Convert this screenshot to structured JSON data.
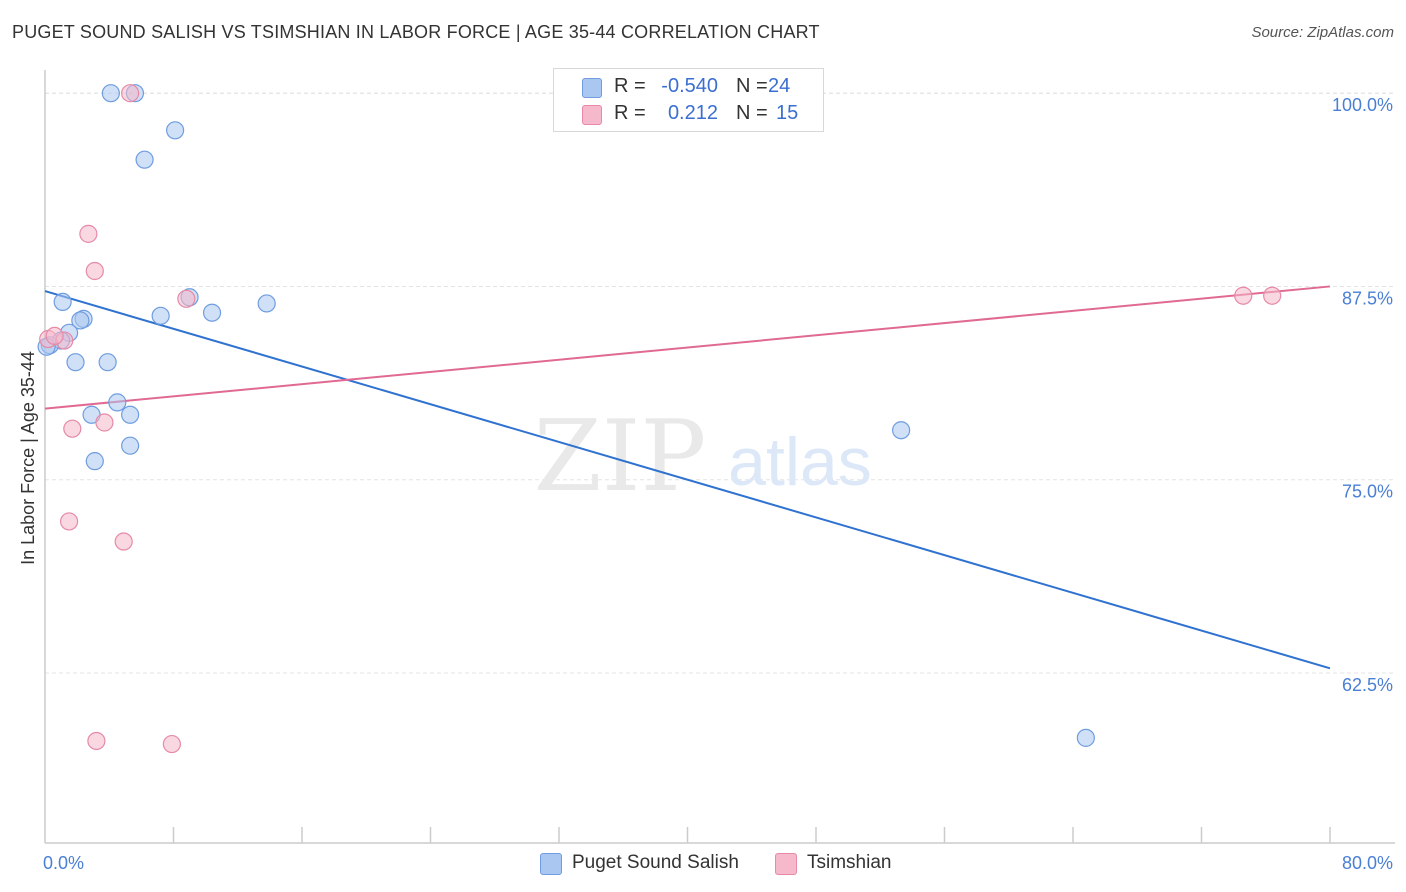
{
  "header": {
    "title": "PUGET SOUND SALISH VS TSIMSHIAN IN LABOR FORCE | AGE 35-44 CORRELATION CHART",
    "source": "Source: ZipAtlas.com"
  },
  "watermark": {
    "zip": "ZIP",
    "atlas": "atlas"
  },
  "legend": {
    "rows": [
      {
        "r_label": "R =",
        "r_value": "-0.540",
        "n_label": "N =",
        "n_value": "24",
        "color": "#a9c7f0",
        "border": "#6f9de0"
      },
      {
        "r_label": "R =",
        "r_value": "0.212",
        "n_label": "N =",
        "n_value": "15",
        "color": "#f6b8cb",
        "border": "#e68aa7"
      }
    ]
  },
  "colors": {
    "blue_fill": "#a9c7f0",
    "blue_stroke": "#6f9de0",
    "blue_line": "#2f72d0",
    "pink_fill": "#f6b8cb",
    "pink_stroke": "#e68aa7",
    "pink_line": "#e06a93",
    "grid": "#e3e3e3",
    "axis": "#cccccc",
    "tick_text": "#4a7fd4"
  },
  "chart_data": {
    "type": "scatter",
    "title": "PUGET SOUND SALISH VS TSIMSHIAN IN LABOR FORCE | AGE 35-44 CORRELATION CHART",
    "xlabel": "",
    "ylabel": "In Labor Force | Age 35-44",
    "xlim": [
      0,
      80
    ],
    "ylim": [
      51.5,
      101.5
    ],
    "x_tick_labels": [
      "0.0%",
      "80.0%"
    ],
    "y_ticks": [
      62.5,
      75.0,
      87.5,
      100.0
    ],
    "y_tick_labels": [
      "62.5%",
      "75.0%",
      "87.5%",
      "100.0%"
    ],
    "grid": true,
    "legend_position": "top-center",
    "series": [
      {
        "name": "Puget Sound Salish",
        "color": "#a9c7f0",
        "points": [
          [
            4.1,
            100.0
          ],
          [
            5.6,
            100.0
          ],
          [
            8.1,
            97.6
          ],
          [
            6.2,
            95.7
          ],
          [
            1.1,
            86.5
          ],
          [
            2.4,
            85.4
          ],
          [
            2.2,
            85.3
          ],
          [
            7.2,
            85.6
          ],
          [
            9.0,
            86.8
          ],
          [
            10.4,
            85.8
          ],
          [
            13.8,
            86.4
          ],
          [
            1.5,
            84.5
          ],
          [
            1.0,
            84.0
          ],
          [
            0.3,
            83.7
          ],
          [
            0.1,
            83.6
          ],
          [
            1.9,
            82.6
          ],
          [
            3.9,
            82.6
          ],
          [
            4.5,
            80.0
          ],
          [
            2.9,
            79.2
          ],
          [
            5.3,
            79.2
          ],
          [
            5.3,
            77.2
          ],
          [
            3.1,
            76.2
          ],
          [
            53.3,
            78.2
          ],
          [
            64.8,
            58.3
          ]
        ],
        "trend": {
          "x": [
            0,
            80
          ],
          "y": [
            87.2,
            62.8
          ]
        }
      },
      {
        "name": "Tsimshian",
        "color": "#f6b8cb",
        "points": [
          [
            5.3,
            100.0
          ],
          [
            2.7,
            90.9
          ],
          [
            3.1,
            88.5
          ],
          [
            8.8,
            86.7
          ],
          [
            0.2,
            84.1
          ],
          [
            1.2,
            84.0
          ],
          [
            0.6,
            84.3
          ],
          [
            1.7,
            78.3
          ],
          [
            3.7,
            78.7
          ],
          [
            1.5,
            72.3
          ],
          [
            4.9,
            71.0
          ],
          [
            3.2,
            58.1
          ],
          [
            7.9,
            57.9
          ],
          [
            74.6,
            86.9
          ],
          [
            76.4,
            86.9
          ]
        ],
        "trend": {
          "x": [
            0,
            80
          ],
          "y": [
            79.6,
            87.5
          ]
        }
      }
    ]
  },
  "bottom_legend": [
    {
      "label": "Puget Sound Salish",
      "color": "#a9c7f0",
      "border": "#6f9de0"
    },
    {
      "label": "Tsimshian",
      "color": "#f6b8cb",
      "border": "#e68aa7"
    }
  ]
}
